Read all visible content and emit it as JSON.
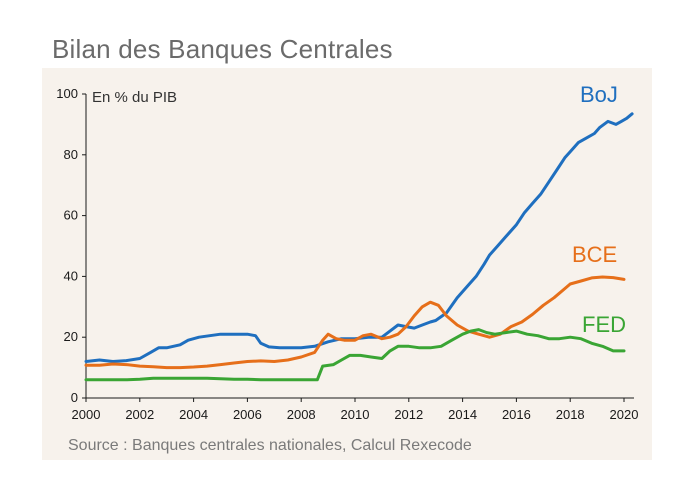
{
  "title": "Bilan des Banques Centrales",
  "chart_data": {
    "type": "line",
    "unit_label": "En % du PIB",
    "source": "Source : Banques centrales nationales, Calcul Rexecode",
    "xlim": [
      2000,
      2020.3
    ],
    "ylim": [
      0,
      100
    ],
    "xticks": [
      2000,
      2002,
      2004,
      2006,
      2008,
      2010,
      2012,
      2014,
      2016,
      2018,
      2020
    ],
    "yticks": [
      0,
      20,
      40,
      60,
      80,
      100
    ],
    "grid": false,
    "series": [
      {
        "name": "BoJ",
        "color": "#1f6fbf",
        "points": [
          [
            2000.0,
            12.0
          ],
          [
            2000.5,
            12.5
          ],
          [
            2001.0,
            12.0
          ],
          [
            2001.5,
            12.3
          ],
          [
            2002.0,
            13.0
          ],
          [
            2002.4,
            15.0
          ],
          [
            2002.7,
            16.5
          ],
          [
            2003.0,
            16.5
          ],
          [
            2003.5,
            17.5
          ],
          [
            2003.8,
            19.0
          ],
          [
            2004.2,
            20.0
          ],
          [
            2004.6,
            20.5
          ],
          [
            2005.0,
            21.0
          ],
          [
            2005.5,
            21.0
          ],
          [
            2006.0,
            21.0
          ],
          [
            2006.3,
            20.5
          ],
          [
            2006.5,
            18.0
          ],
          [
            2006.8,
            16.8
          ],
          [
            2007.2,
            16.5
          ],
          [
            2007.6,
            16.5
          ],
          [
            2008.0,
            16.5
          ],
          [
            2008.5,
            17.0
          ],
          [
            2009.0,
            18.5
          ],
          [
            2009.5,
            19.5
          ],
          [
            2010.0,
            19.5
          ],
          [
            2010.5,
            20.0
          ],
          [
            2011.0,
            20.0
          ],
          [
            2011.3,
            22.0
          ],
          [
            2011.6,
            24.0
          ],
          [
            2011.9,
            23.5
          ],
          [
            2012.2,
            23.0
          ],
          [
            2012.5,
            24.0
          ],
          [
            2012.8,
            25.0
          ],
          [
            2013.0,
            25.5
          ],
          [
            2013.4,
            28.0
          ],
          [
            2013.8,
            33.0
          ],
          [
            2014.2,
            37.0
          ],
          [
            2014.5,
            40.0
          ],
          [
            2014.8,
            44.0
          ],
          [
            2015.0,
            47.0
          ],
          [
            2015.3,
            50.0
          ],
          [
            2015.6,
            53.0
          ],
          [
            2016.0,
            57.0
          ],
          [
            2016.3,
            61.0
          ],
          [
            2016.6,
            64.0
          ],
          [
            2016.9,
            67.0
          ],
          [
            2017.2,
            71.0
          ],
          [
            2017.5,
            75.0
          ],
          [
            2017.8,
            79.0
          ],
          [
            2018.0,
            81.0
          ],
          [
            2018.3,
            84.0
          ],
          [
            2018.6,
            85.5
          ],
          [
            2018.9,
            87.0
          ],
          [
            2019.1,
            89.0
          ],
          [
            2019.4,
            91.0
          ],
          [
            2019.7,
            90.0
          ],
          [
            2019.9,
            91.0
          ],
          [
            2020.1,
            92.0
          ],
          [
            2020.3,
            93.5
          ]
        ]
      },
      {
        "name": "BCE",
        "color": "#e66f1a",
        "points": [
          [
            2000.0,
            10.8
          ],
          [
            2000.5,
            10.8
          ],
          [
            2001.0,
            11.2
          ],
          [
            2001.5,
            11.0
          ],
          [
            2002.0,
            10.5
          ],
          [
            2002.5,
            10.3
          ],
          [
            2003.0,
            10.0
          ],
          [
            2003.5,
            10.0
          ],
          [
            2004.0,
            10.2
          ],
          [
            2004.5,
            10.5
          ],
          [
            2005.0,
            11.0
          ],
          [
            2005.5,
            11.5
          ],
          [
            2006.0,
            12.0
          ],
          [
            2006.5,
            12.2
          ],
          [
            2007.0,
            12.0
          ],
          [
            2007.5,
            12.5
          ],
          [
            2008.0,
            13.5
          ],
          [
            2008.5,
            15.0
          ],
          [
            2008.8,
            19.0
          ],
          [
            2009.0,
            21.0
          ],
          [
            2009.3,
            19.5
          ],
          [
            2009.6,
            19.0
          ],
          [
            2010.0,
            19.0
          ],
          [
            2010.3,
            20.5
          ],
          [
            2010.6,
            21.0
          ],
          [
            2011.0,
            19.5
          ],
          [
            2011.3,
            20.0
          ],
          [
            2011.6,
            21.0
          ],
          [
            2011.9,
            23.5
          ],
          [
            2012.2,
            27.0
          ],
          [
            2012.5,
            30.0
          ],
          [
            2012.8,
            31.5
          ],
          [
            2013.1,
            30.5
          ],
          [
            2013.4,
            27.0
          ],
          [
            2013.8,
            24.0
          ],
          [
            2014.2,
            22.0
          ],
          [
            2014.6,
            21.0
          ],
          [
            2015.0,
            20.0
          ],
          [
            2015.4,
            21.0
          ],
          [
            2015.8,
            23.5
          ],
          [
            2016.2,
            25.0
          ],
          [
            2016.6,
            27.5
          ],
          [
            2017.0,
            30.5
          ],
          [
            2017.4,
            33.0
          ],
          [
            2017.8,
            36.0
          ],
          [
            2018.0,
            37.5
          ],
          [
            2018.4,
            38.5
          ],
          [
            2018.8,
            39.5
          ],
          [
            2019.2,
            39.8
          ],
          [
            2019.6,
            39.6
          ],
          [
            2020.0,
            39.0
          ]
        ]
      },
      {
        "name": "FED",
        "color": "#3aa534",
        "points": [
          [
            2000.0,
            6.0
          ],
          [
            2000.5,
            6.0
          ],
          [
            2001.0,
            6.0
          ],
          [
            2001.5,
            6.0
          ],
          [
            2002.0,
            6.2
          ],
          [
            2002.5,
            6.5
          ],
          [
            2003.0,
            6.5
          ],
          [
            2003.5,
            6.5
          ],
          [
            2004.0,
            6.5
          ],
          [
            2004.5,
            6.5
          ],
          [
            2005.0,
            6.3
          ],
          [
            2005.5,
            6.2
          ],
          [
            2006.0,
            6.2
          ],
          [
            2006.5,
            6.0
          ],
          [
            2007.0,
            6.0
          ],
          [
            2007.5,
            6.0
          ],
          [
            2008.0,
            6.0
          ],
          [
            2008.6,
            6.0
          ],
          [
            2008.8,
            10.5
          ],
          [
            2009.2,
            11.0
          ],
          [
            2009.5,
            12.5
          ],
          [
            2009.8,
            14.0
          ],
          [
            2010.2,
            14.0
          ],
          [
            2010.6,
            13.5
          ],
          [
            2011.0,
            13.0
          ],
          [
            2011.3,
            15.5
          ],
          [
            2011.6,
            17.0
          ],
          [
            2012.0,
            17.0
          ],
          [
            2012.4,
            16.5
          ],
          [
            2012.8,
            16.5
          ],
          [
            2013.2,
            17.0
          ],
          [
            2013.6,
            19.0
          ],
          [
            2014.0,
            21.0
          ],
          [
            2014.3,
            22.0
          ],
          [
            2014.6,
            22.5
          ],
          [
            2014.9,
            21.5
          ],
          [
            2015.2,
            21.0
          ],
          [
            2015.6,
            21.5
          ],
          [
            2016.0,
            22.0
          ],
          [
            2016.4,
            21.0
          ],
          [
            2016.8,
            20.5
          ],
          [
            2017.2,
            19.5
          ],
          [
            2017.6,
            19.5
          ],
          [
            2018.0,
            20.0
          ],
          [
            2018.4,
            19.5
          ],
          [
            2018.8,
            18.0
          ],
          [
            2019.2,
            17.0
          ],
          [
            2019.6,
            15.5
          ],
          [
            2020.0,
            15.5
          ]
        ]
      }
    ]
  }
}
